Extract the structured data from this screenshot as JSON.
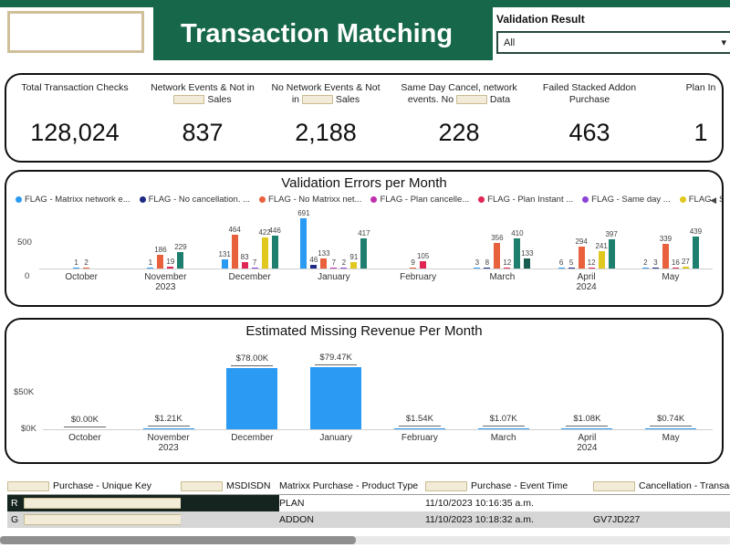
{
  "header": {
    "title": "Transaction Matching",
    "filter": {
      "label": "Validation Result",
      "value": "All"
    }
  },
  "icons": {
    "dropdown_chevron": "▾",
    "legend_scroll": "◀"
  },
  "kpis": [
    {
      "parts": [
        {
          "t": "Total Transaction Checks"
        }
      ],
      "value": "128,024"
    },
    {
      "parts": [
        {
          "t": "Network Events & Not in"
        },
        {
          "r": true
        },
        {
          "t": "Sales"
        }
      ],
      "value": "837"
    },
    {
      "parts": [
        {
          "t": "No Network Events & Not in"
        },
        {
          "r": true
        },
        {
          "t": "Sales"
        }
      ],
      "value": "2,188"
    },
    {
      "parts": [
        {
          "t": "Same Day Cancel, network events. No"
        },
        {
          "r": true
        },
        {
          "t": "Data"
        }
      ],
      "value": "228"
    },
    {
      "parts": [
        {
          "t": "Failed Stacked Addon Purchase"
        }
      ],
      "value": "463"
    },
    {
      "parts": [
        {
          "t": "Plan In"
        }
      ],
      "value": "1"
    }
  ],
  "chart_data": [
    {
      "type": "bar",
      "title": "Validation Errors per Month",
      "yticks": [
        0,
        500
      ],
      "ylim": [
        0,
        700
      ],
      "legend": [
        {
          "name": "FLAG - Matrixx network e...",
          "color": "blue"
        },
        {
          "name": "FLAG - No cancellation. ...",
          "color": "navy"
        },
        {
          "name": "FLAG - No Matrixx net...",
          "color": "orange"
        },
        {
          "name": "FLAG - Plan cancelle...",
          "color": "magenta"
        },
        {
          "name": "FLAG - Plan Instant ...",
          "color": "pink"
        },
        {
          "name": "FLAG - Same day ...",
          "color": "purple"
        },
        {
          "name": "FLAG - Same day ...",
          "color": "yellow"
        }
      ],
      "colors": {
        "blue": "#2b9af3",
        "navy": "#202a84",
        "orange": "#e8613c",
        "magenta": "#bf2fae",
        "pink": "#e02454",
        "purple": "#8d41d6",
        "yellow": "#e0c81f",
        "teal": "#1e7f6f",
        "green": "#175c4e"
      },
      "groups": [
        {
          "month": "October",
          "year": "",
          "bars": [
            {
              "v": 1,
              "c": "blue"
            },
            {
              "v": 2,
              "c": "orange"
            }
          ]
        },
        {
          "month": "November",
          "year": "2023",
          "bars": [
            {
              "v": 1,
              "c": "blue"
            },
            {
              "v": 186,
              "c": "orange"
            },
            {
              "v": 19,
              "c": "pink"
            },
            {
              "v": 229,
              "c": "teal"
            }
          ]
        },
        {
          "month": "December",
          "year": "",
          "bars": [
            {
              "v": 131,
              "c": "blue"
            },
            {
              "v": 464,
              "c": "orange"
            },
            {
              "v": 83,
              "c": "pink"
            },
            {
              "v": 7,
              "c": "purple"
            },
            {
              "v": 422,
              "c": "yellow"
            },
            {
              "v": 446,
              "c": "teal"
            }
          ]
        },
        {
          "month": "January",
          "year": "",
          "bars": [
            {
              "v": 691,
              "c": "blue"
            },
            {
              "v": 46,
              "c": "navy"
            },
            {
              "v": 133,
              "c": "orange"
            },
            {
              "v": 7,
              "c": "magenta"
            },
            {
              "v": 2,
              "c": "purple"
            },
            {
              "v": 91,
              "c": "yellow"
            },
            {
              "v": 417,
              "c": "teal"
            }
          ]
        },
        {
          "month": "February",
          "year": "",
          "bars": [
            {
              "v": 9,
              "c": "orange"
            },
            {
              "v": 105,
              "c": "pink"
            }
          ]
        },
        {
          "month": "March",
          "year": "",
          "bars": [
            {
              "v": 3,
              "c": "blue"
            },
            {
              "v": 8,
              "c": "navy"
            },
            {
              "v": 356,
              "c": "orange"
            },
            {
              "v": 12,
              "c": "pink"
            },
            {
              "v": 410,
              "c": "teal"
            },
            {
              "v": 133,
              "c": "green"
            }
          ]
        },
        {
          "month": "April",
          "year": "2024",
          "bars": [
            {
              "v": 6,
              "c": "blue"
            },
            {
              "v": 5,
              "c": "navy"
            },
            {
              "v": 294,
              "c": "orange"
            },
            {
              "v": 12,
              "c": "pink"
            },
            {
              "v": 241,
              "c": "yellow"
            },
            {
              "v": 397,
              "c": "teal"
            }
          ]
        },
        {
          "month": "May",
          "year": "",
          "bars": [
            {
              "v": 2,
              "c": "blue"
            },
            {
              "v": 3,
              "c": "navy"
            },
            {
              "v": 339,
              "c": "orange"
            },
            {
              "v": 16,
              "c": "pink"
            },
            {
              "v": 27,
              "c": "yellow"
            },
            {
              "v": 439,
              "c": "teal"
            }
          ]
        }
      ]
    },
    {
      "type": "bar",
      "title": "Estimated Missing Revenue Per Month",
      "yticks": [
        "$0K",
        "$50K"
      ],
      "ylim_k": [
        0,
        90
      ],
      "bar_color": "#2b9af3",
      "points": [
        {
          "month": "October",
          "year": "",
          "value_k": 0.0,
          "label": "$0.00K"
        },
        {
          "month": "November",
          "year": "2023",
          "value_k": 1.21,
          "label": "$1.21K"
        },
        {
          "month": "December",
          "year": "",
          "value_k": 78.0,
          "label": "$78.00K"
        },
        {
          "month": "January",
          "year": "",
          "value_k": 79.47,
          "label": "$79.47K"
        },
        {
          "month": "February",
          "year": "",
          "value_k": 1.54,
          "label": "$1.54K"
        },
        {
          "month": "March",
          "year": "",
          "value_k": 1.07,
          "label": "$1.07K"
        },
        {
          "month": "April",
          "year": "2024",
          "value_k": 1.08,
          "label": "$1.08K"
        },
        {
          "month": "May",
          "year": "",
          "value_k": 0.74,
          "label": "$0.74K"
        }
      ]
    }
  ],
  "table": {
    "columns": [
      {
        "redacted_prefix": true,
        "label": "Purchase - Unique Key"
      },
      {
        "redacted_prefix": true,
        "label": "MSDISDN"
      },
      {
        "redacted_prefix": false,
        "label": "Matrixx Purchase - Product Type"
      },
      {
        "redacted_prefix": true,
        "label": "Purchase - Event Time"
      },
      {
        "redacted_prefix": true,
        "label": "Cancellation - Transactio"
      }
    ],
    "rows": [
      {
        "key_prefix": "R",
        "key_redacted": true,
        "msisdn": "",
        "product_type": "PLAN",
        "event_time": "11/10/2023 10:16:35 a.m.",
        "cancellation": "",
        "dark": true
      },
      {
        "key_prefix": "G",
        "key_redacted": true,
        "msisdn": "",
        "product_type": "ADDON",
        "event_time": "11/10/2023 10:18:32 a.m.",
        "cancellation": "GV7JD227",
        "dark": false
      }
    ]
  },
  "colors": {
    "brand_green": "#17684a",
    "bar_blue": "#2b9af3"
  }
}
